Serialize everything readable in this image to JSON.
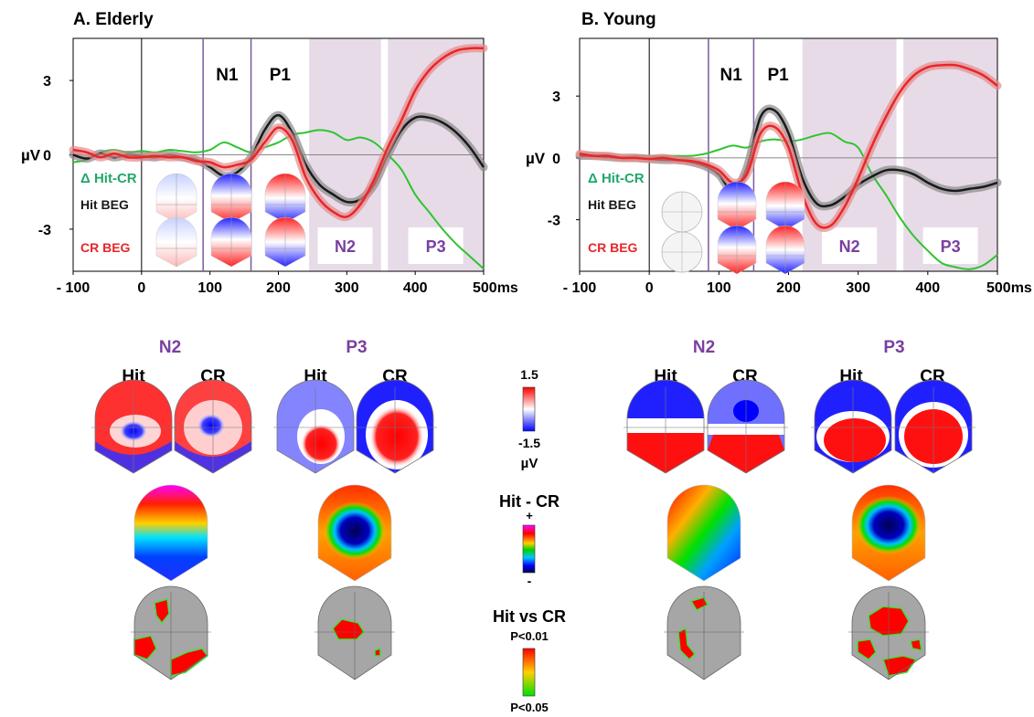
{
  "colors": {
    "hit": "#1a1a1a",
    "cr": "#e8262a",
    "diff": "#2fc42f",
    "diff_label": "#1fa86a",
    "component_label": "#7a3fa0",
    "window_shade": "#e7dbe8",
    "window_line": "#7a5a9e",
    "hit_band": "#8a8a8a",
    "cr_band": "#e68a8a",
    "red": "#ff0000",
    "blue": "#0000ff",
    "gray": "#a6a6a6"
  },
  "labels": {
    "ylabel": "µV",
    "diff_label": "Δ Hit-CR",
    "hit_label": "Hit BEG",
    "cr_label": "CR BEG",
    "n1": "N1",
    "p1": "P1",
    "n2": "N2",
    "p3": "P3",
    "hit": "Hit",
    "cr": "CR",
    "scale_max": "1.5",
    "scale_min": "-1.5",
    "scale_unit": "µV",
    "diff_title": "Hit - CR",
    "plus": "+",
    "minus": "-",
    "stat_title": "Hit vs CR",
    "p001": "P<0.01",
    "p005": "P<0.05",
    "x_unit_last": "500ms"
  },
  "chart_data": [
    {
      "type": "line",
      "title": "A. Elderly",
      "ylabel": "µV",
      "xlim": [
        -100,
        500
      ],
      "ylim": [
        -4.7,
        4.7
      ],
      "xticks": [
        -100,
        0,
        100,
        200,
        300,
        400,
        500
      ],
      "xtick_labels": [
        "- 100",
        "0",
        "100",
        "200",
        "300",
        "400",
        "500ms"
      ],
      "yticks": [
        3,
        0,
        -3
      ],
      "ytick_labels": [
        "3",
        "0",
        "-3"
      ],
      "windows": [
        {
          "name": "N1",
          "start": 90,
          "end": 160,
          "shaded": false
        },
        {
          "name": "P1",
          "start": 160,
          "end": 245,
          "shaded": false
        },
        {
          "name": "N2",
          "start": 245,
          "end": 350,
          "shaded": true
        },
        {
          "name": "P3",
          "start": 360,
          "end": 500,
          "shaded": true
        }
      ],
      "x": [
        -100,
        -80,
        -60,
        -40,
        -20,
        0,
        20,
        40,
        60,
        80,
        100,
        120,
        140,
        160,
        180,
        200,
        220,
        240,
        260,
        280,
        300,
        320,
        340,
        360,
        380,
        400,
        420,
        440,
        460,
        480,
        500
      ],
      "series": [
        {
          "name": "Hit BEG",
          "values": [
            0.0,
            -0.15,
            0.05,
            -0.1,
            0.0,
            -0.05,
            -0.1,
            0.0,
            -0.1,
            -0.2,
            -0.5,
            -0.85,
            -0.7,
            -0.1,
            1.0,
            1.6,
            0.9,
            -0.4,
            -1.2,
            -1.6,
            -1.9,
            -1.8,
            -1.2,
            0.0,
            1.0,
            1.5,
            1.5,
            1.3,
            0.9,
            0.3,
            -0.5
          ]
        },
        {
          "name": "CR BEG",
          "values": [
            0.2,
            0.1,
            -0.1,
            0.05,
            -0.1,
            -0.1,
            -0.05,
            -0.1,
            -0.1,
            -0.25,
            -0.3,
            -0.5,
            -0.4,
            -0.2,
            0.5,
            1.1,
            0.6,
            -0.9,
            -1.8,
            -2.3,
            -2.5,
            -2.0,
            -1.0,
            0.3,
            1.4,
            2.6,
            3.4,
            3.9,
            4.2,
            4.3,
            4.3
          ]
        },
        {
          "name": "Δ Hit-CR",
          "values": [
            -0.3,
            -0.2,
            0.1,
            0.2,
            0.1,
            0.15,
            0.1,
            0.2,
            0.15,
            0.1,
            0.2,
            0.5,
            0.3,
            0.1,
            0.3,
            0.5,
            0.8,
            0.9,
            1.0,
            0.9,
            0.6,
            0.7,
            0.5,
            0.0,
            -0.6,
            -1.6,
            -2.3,
            -3.0,
            -3.6,
            -4.1,
            -4.6
          ]
        }
      ]
    },
    {
      "type": "line",
      "title": "B. Young",
      "ylabel": "µV",
      "xlim": [
        -100,
        500
      ],
      "ylim": [
        -5.5,
        5.8
      ],
      "xticks": [
        -100,
        0,
        100,
        200,
        300,
        400,
        500
      ],
      "xtick_labels": [
        "- 100",
        "0",
        "100",
        "200",
        "300",
        "400",
        "500ms"
      ],
      "yticks": [
        3,
        0,
        -3
      ],
      "ytick_labels": [
        "3",
        "0",
        "-3"
      ],
      "windows": [
        {
          "name": "N1",
          "start": 85,
          "end": 150,
          "shaded": false
        },
        {
          "name": "P1",
          "start": 150,
          "end": 220,
          "shaded": false
        },
        {
          "name": "N2",
          "start": 220,
          "end": 355,
          "shaded": true
        },
        {
          "name": "P3",
          "start": 365,
          "end": 500,
          "shaded": true
        }
      ],
      "x": [
        -100,
        -80,
        -60,
        -40,
        -20,
        0,
        20,
        40,
        60,
        80,
        100,
        120,
        140,
        160,
        180,
        200,
        220,
        240,
        260,
        280,
        300,
        320,
        340,
        360,
        380,
        400,
        420,
        440,
        460,
        480,
        500
      ],
      "series": [
        {
          "name": "Hit BEG",
          "values": [
            0.1,
            0.1,
            0.05,
            0.0,
            0.0,
            -0.05,
            -0.1,
            -0.1,
            -0.2,
            -0.4,
            -0.8,
            -1.6,
            -0.5,
            2.0,
            2.3,
            1.2,
            -1.0,
            -2.2,
            -2.3,
            -1.9,
            -1.3,
            -0.9,
            -0.6,
            -0.6,
            -0.8,
            -1.2,
            -1.5,
            -1.6,
            -1.5,
            -1.4,
            -1.2
          ]
        },
        {
          "name": "CR BEG",
          "values": [
            0.2,
            0.1,
            0.1,
            0.0,
            0.0,
            -0.05,
            0.0,
            -0.1,
            -0.15,
            -0.3,
            -0.6,
            -1.2,
            -0.8,
            1.2,
            1.5,
            0.5,
            -1.8,
            -3.2,
            -3.3,
            -2.4,
            -1.0,
            0.6,
            2.0,
            3.2,
            4.0,
            4.4,
            4.5,
            4.5,
            4.3,
            4.0,
            3.5
          ]
        },
        {
          "name": "Δ Hit-CR",
          "values": [
            0.1,
            0.1,
            0.05,
            0.0,
            0.1,
            0.1,
            0.1,
            0.1,
            0.1,
            0.2,
            0.4,
            0.6,
            0.5,
            0.8,
            0.9,
            0.8,
            0.9,
            1.1,
            1.2,
            0.8,
            0.5,
            -0.8,
            -1.8,
            -2.9,
            -3.8,
            -4.5,
            -5.1,
            -5.3,
            -5.4,
            -5.2,
            -4.7
          ]
        }
      ]
    }
  ]
}
